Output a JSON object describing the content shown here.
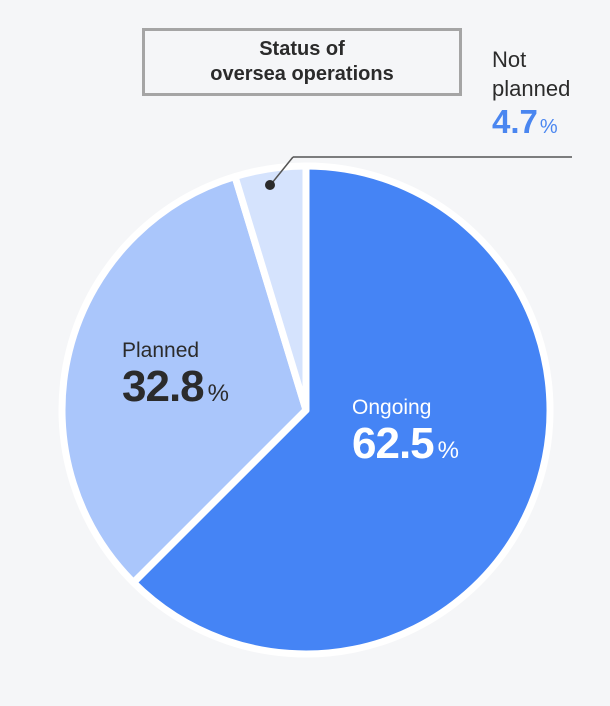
{
  "chart_data": {
    "type": "pie",
    "title_lines": [
      "Status of",
      "oversea operations"
    ],
    "unit": "%",
    "categories": [
      "Ongoing",
      "Planned",
      "Not planned"
    ],
    "values": [
      62.5,
      32.8,
      4.7
    ],
    "labels": {
      "ongoing": {
        "name": "Ongoing",
        "value": "62.5"
      },
      "planned": {
        "name": "Planned",
        "value": "32.8"
      },
      "not_planned": {
        "name_line1": "Not",
        "name_line2": "planned",
        "value": "4.7"
      }
    },
    "colors": [
      "#4584f5",
      "#aac6fb",
      "#d5e3fd"
    ],
    "start_angle": "12 o'clock",
    "direction": "clockwise"
  }
}
